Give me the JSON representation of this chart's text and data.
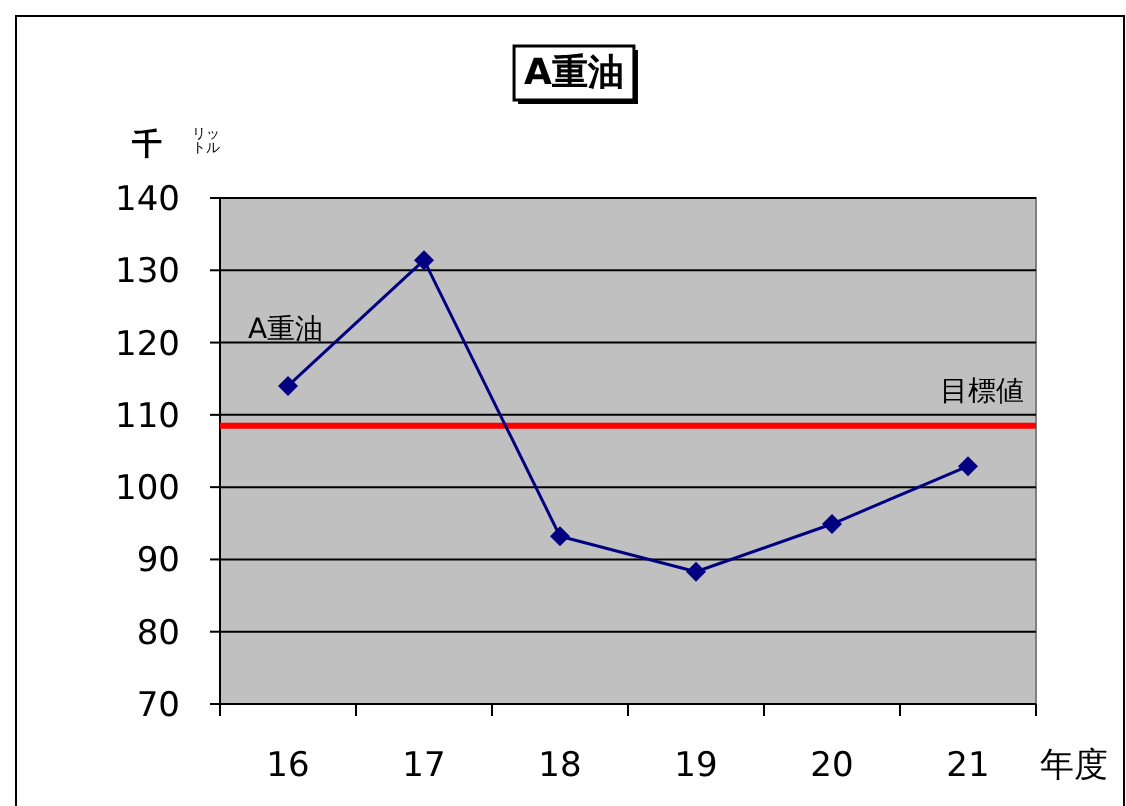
{
  "chart_data": {
    "type": "line",
    "title": "A重油",
    "ylabel": "千リットル",
    "xlabel": "年度",
    "categories": [
      "16",
      "17",
      "18",
      "19",
      "20",
      "21"
    ],
    "series": [
      {
        "name": "A重油",
        "color": "#000080",
        "values": [
          114.0,
          131.4,
          93.2,
          88.3,
          94.9,
          102.9
        ]
      }
    ],
    "ylim": [
      70,
      140
    ],
    "yticks": [
      70,
      80,
      90,
      100,
      110,
      120,
      130,
      140
    ],
    "ref_lines": [
      {
        "axis": "y",
        "value": 108.5,
        "label": "目標値",
        "color": "#ff0000"
      }
    ],
    "grid": "y",
    "marker": "diamond",
    "line_style": "solid"
  }
}
